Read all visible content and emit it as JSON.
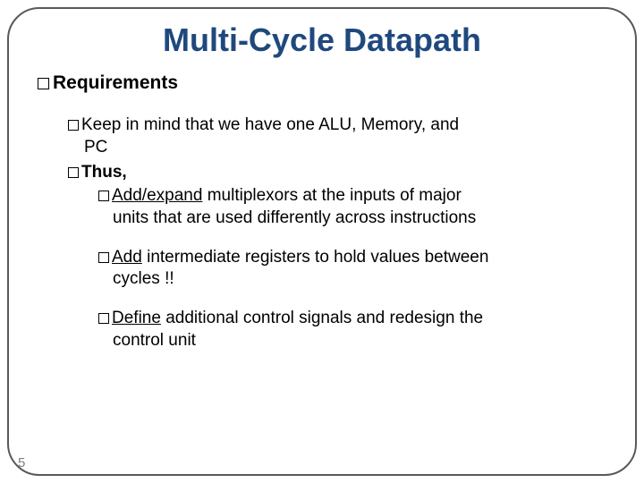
{
  "title": "Multi-Cycle Datapath",
  "l1": {
    "text": "Requirements"
  },
  "l2a": {
    "prefix": "Keep",
    "rest": " in mind that we have one ALU, Memory, and",
    "cont": "PC"
  },
  "l2b": {
    "text": "Thus,"
  },
  "l3a": {
    "u": "Add/expand",
    "rest": " multiplexors at the inputs of major",
    "cont": "units that are used differently across instructions"
  },
  "l3b": {
    "u": "Add",
    "rest": " intermediate registers to hold values between",
    "cont": "cycles !!"
  },
  "l3c": {
    "u": "Define",
    "rest": " additional control signals  and redesign the",
    "cont": "control unit"
  },
  "slide_number": "5",
  "colors": {
    "title": "#1f497d",
    "border": "#595959",
    "text": "#000000",
    "page_num": "#7f7f7f",
    "bg": "#ffffff"
  },
  "fontsizes": {
    "title": 36,
    "l1": 21,
    "l2": 19,
    "l3": 19,
    "pagenum": 15
  }
}
